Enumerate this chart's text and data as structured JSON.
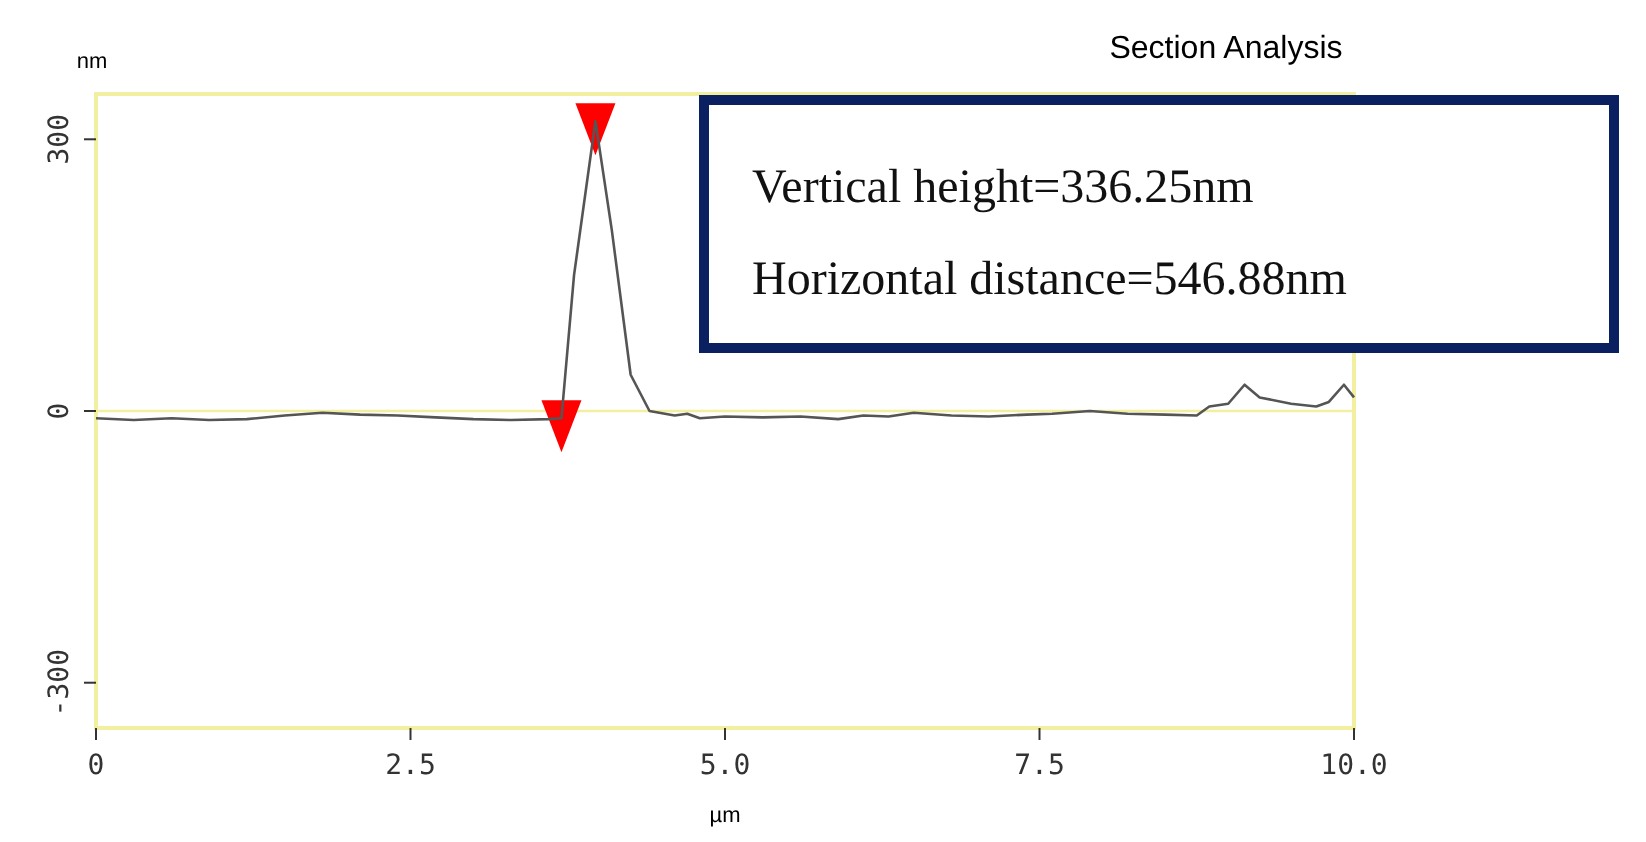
{
  "chart_data": {
    "type": "line",
    "title": "Section Analysis",
    "xlabel": "µm",
    "ylabel": "nm",
    "xlim": [
      0,
      10
    ],
    "xticks": [
      {
        "value": 0,
        "label": "0"
      },
      2.5,
      {
        "value": 5,
        "label": "5.0"
      },
      7.5,
      {
        "value": 10,
        "label": "10.0"
      }
    ],
    "ylim": [
      -350,
      350
    ],
    "yticks": [
      -300,
      0,
      300
    ],
    "series": [
      {
        "color": "#555555",
        "x": [
          0,
          0.3,
          0.6,
          0.9,
          1.2,
          1.5,
          1.8,
          2.1,
          2.4,
          2.7,
          3.0,
          3.3,
          3.6,
          3.7,
          3.8,
          3.97,
          4.1,
          4.25,
          4.4,
          4.6,
          4.7,
          4.8,
          5.0,
          5.3,
          5.6,
          5.9,
          6.1,
          6.3,
          6.5,
          6.8,
          7.1,
          7.4,
          7.6,
          7.9,
          8.2,
          8.5,
          8.75,
          8.85,
          9.0,
          9.13,
          9.25,
          9.5,
          9.7,
          9.8,
          9.92,
          10.0
        ],
        "values": [
          -8,
          -10,
          -8,
          -10,
          -9,
          -5,
          -2,
          -4,
          -5,
          -7,
          -9,
          -10,
          -9,
          -8,
          150,
          320,
          200,
          40,
          0,
          -5,
          -3,
          -8,
          -6,
          -7,
          -6,
          -9,
          -5,
          -6,
          -2,
          -5,
          -6,
          -4,
          -3,
          0,
          -3,
          -4,
          -5,
          5,
          8,
          29,
          15,
          8,
          5,
          10,
          29,
          15
        ]
      },
      {
        "type": "scatter",
        "color": "#ff0000",
        "marker": "triangle",
        "x": [
          3.7,
          3.97
        ],
        "values": [
          -8,
          320
        ]
      }
    ],
    "ref_lines": [
      {
        "axis": "y",
        "value": 0,
        "color": "#f2f0a0"
      }
    ],
    "annotations": [
      "Vertical height=336.25nm",
      "Horizontal distance=546.88nm"
    ]
  }
}
